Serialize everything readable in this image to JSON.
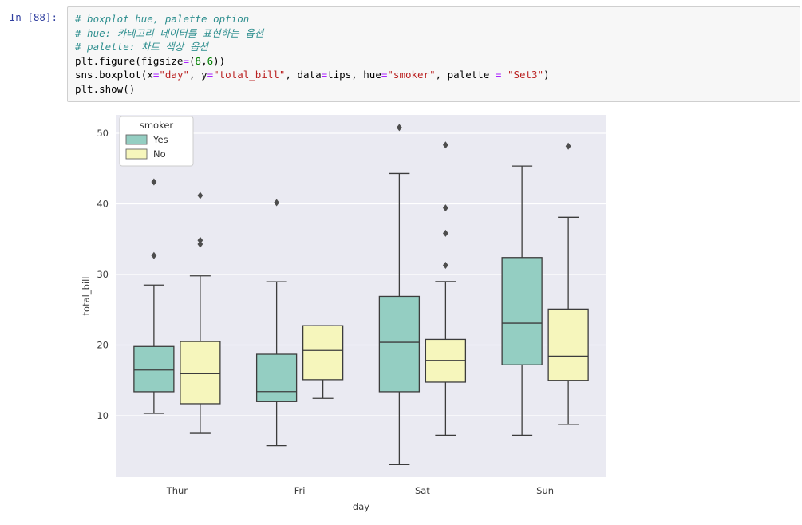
{
  "notebook": {
    "prompt": "In [88]:",
    "code_lines": [
      [
        {
          "text": "# boxplot hue, palette option",
          "type": "comment"
        }
      ],
      [
        {
          "text": "# hue: 카테고리 데이터를 표현하는 옵션",
          "type": "comment"
        }
      ],
      [
        {
          "text": "# palette: 차트 색상 옵션",
          "type": "comment"
        }
      ],
      [
        {
          "text": "plt.figure(figsize",
          "type": "code"
        },
        {
          "text": "=",
          "type": "op"
        },
        {
          "text": "(",
          "type": "code"
        },
        {
          "text": "8",
          "type": "number"
        },
        {
          "text": ",",
          "type": "code"
        },
        {
          "text": "6",
          "type": "number"
        },
        {
          "text": "))",
          "type": "code"
        }
      ],
      [
        {
          "text": "sns.boxplot(x",
          "type": "code"
        },
        {
          "text": "=",
          "type": "op"
        },
        {
          "text": "\"day\"",
          "type": "string"
        },
        {
          "text": ", y",
          "type": "code"
        },
        {
          "text": "=",
          "type": "op"
        },
        {
          "text": "\"total_bill\"",
          "type": "string"
        },
        {
          "text": ", data",
          "type": "code"
        },
        {
          "text": "=",
          "type": "op"
        },
        {
          "text": "tips, hue",
          "type": "code"
        },
        {
          "text": "=",
          "type": "op"
        },
        {
          "text": "\"smoker\"",
          "type": "string"
        },
        {
          "text": ", palette ",
          "type": "code"
        },
        {
          "text": "=",
          "type": "op"
        },
        {
          "text": " ",
          "type": "code"
        },
        {
          "text": "\"Set3\"",
          "type": "string"
        },
        {
          "text": ")",
          "type": "code"
        }
      ],
      [
        {
          "text": "plt.show()",
          "type": "code"
        }
      ]
    ]
  },
  "chart_data": {
    "type": "boxplot",
    "title": "",
    "xlabel": "day",
    "ylabel": "total_bill",
    "categories": [
      "Thur",
      "Fri",
      "Sat",
      "Sun"
    ],
    "yticks": [
      10,
      20,
      30,
      40,
      50
    ],
    "ylim": [
      1.3,
      52.6
    ],
    "grid": "horizontal white lines on lavender background",
    "background": "#eaeaf2",
    "gridline_color": "#ffffff",
    "line_color": "#3c3c3c",
    "flier_color": "#4d4d4d",
    "legend": {
      "title": "smoker",
      "position": "upper left",
      "entries": [
        {
          "label": "Yes",
          "color": "#94cec2"
        },
        {
          "label": "No",
          "color": "#f6f6bc"
        }
      ]
    },
    "series": [
      {
        "name": "Yes",
        "color": "#94cec2",
        "boxes": [
          {
            "category": "Thur",
            "whislo": 10.34,
            "q1": 13.4,
            "med": 16.47,
            "q3": 19.8,
            "whishi": 28.5,
            "fliers": [
              32.68,
              43.11
            ]
          },
          {
            "category": "Fri",
            "whislo": 5.75,
            "q1": 12.0,
            "med": 13.42,
            "q3": 18.7,
            "whishi": 28.97,
            "fliers": [
              40.17
            ]
          },
          {
            "category": "Sat",
            "whislo": 3.07,
            "q1": 13.4,
            "med": 20.39,
            "q3": 26.9,
            "whishi": 44.3,
            "fliers": [
              50.81
            ]
          },
          {
            "category": "Sun",
            "whislo": 7.25,
            "q1": 17.2,
            "med": 23.1,
            "q3": 32.4,
            "whishi": 45.35,
            "fliers": []
          }
        ]
      },
      {
        "name": "No",
        "color": "#f6f6bc",
        "boxes": [
          {
            "category": "Thur",
            "whislo": 7.51,
            "q1": 11.7,
            "med": 15.95,
            "q3": 20.5,
            "whishi": 29.8,
            "fliers": [
              34.3,
              34.83,
              41.19
            ]
          },
          {
            "category": "Fri",
            "whislo": 12.46,
            "q1": 15.1,
            "med": 19.24,
            "q3": 22.75,
            "whishi": 22.75,
            "fliers": []
          },
          {
            "category": "Sat",
            "whislo": 7.25,
            "q1": 14.75,
            "med": 17.82,
            "q3": 20.8,
            "whishi": 29.0,
            "fliers": [
              31.3,
              35.83,
              39.42,
              48.33
            ]
          },
          {
            "category": "Sun",
            "whislo": 8.77,
            "q1": 15.0,
            "med": 18.43,
            "q3": 25.1,
            "whishi": 38.1,
            "fliers": [
              48.17
            ]
          }
        ]
      }
    ]
  }
}
